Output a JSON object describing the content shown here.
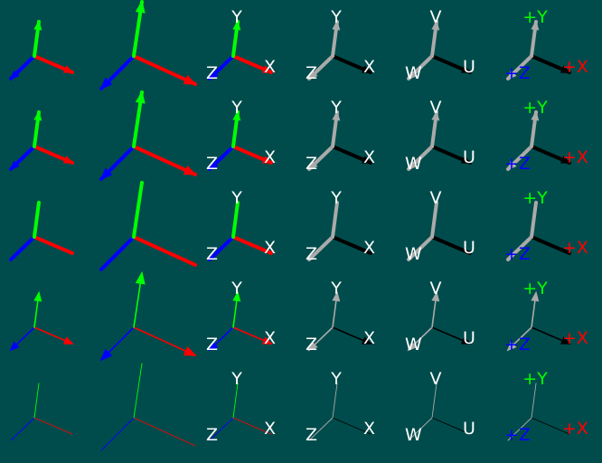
{
  "background": "#004c4c",
  "colors": {
    "x_axis": "#ff0000",
    "y_axis": "#00ff00",
    "z_axis": "#0000ff",
    "mono_light": "#aaaaaa",
    "mono_dark": "#000000",
    "label_white": "#ffffff"
  },
  "label_sets": {
    "xyz": {
      "x": "X",
      "y": "Y",
      "z": "Z"
    },
    "uvw": {
      "x": "U",
      "y": "V",
      "z": "W"
    },
    "signed": {
      "x": "+X",
      "y": "+Y",
      "z": "+Z"
    }
  },
  "columns": [
    {
      "id": "colored-small",
      "style": "colored",
      "scale": "small",
      "labels": null
    },
    {
      "id": "colored-large",
      "style": "colored",
      "scale": "large",
      "labels": null
    },
    {
      "id": "colored-xyz",
      "style": "colored",
      "scale": "small",
      "labels": "xyz",
      "label_color": "white"
    },
    {
      "id": "mono-xyz",
      "style": "mono",
      "scale": "small",
      "labels": "xyz",
      "label_color": "white"
    },
    {
      "id": "mono-uvw",
      "style": "mono",
      "scale": "small",
      "labels": "uvw",
      "label_color": "white"
    },
    {
      "id": "mono-signed",
      "style": "mono",
      "scale": "small",
      "labels": "signed",
      "label_color": "axis"
    }
  ],
  "rows": [
    {
      "id": "thick-arrows",
      "shaft": "thick",
      "arrowheads": true
    },
    {
      "id": "thick-arrows-2",
      "shaft": "thick",
      "arrowheads": true
    },
    {
      "id": "thick-no-arrows",
      "shaft": "thick",
      "arrowheads": false
    },
    {
      "id": "thin-arrows",
      "shaft": "thin",
      "arrowheads": true
    },
    {
      "id": "thin-no-arrows",
      "shaft": "hairline",
      "arrowheads": false
    }
  ]
}
